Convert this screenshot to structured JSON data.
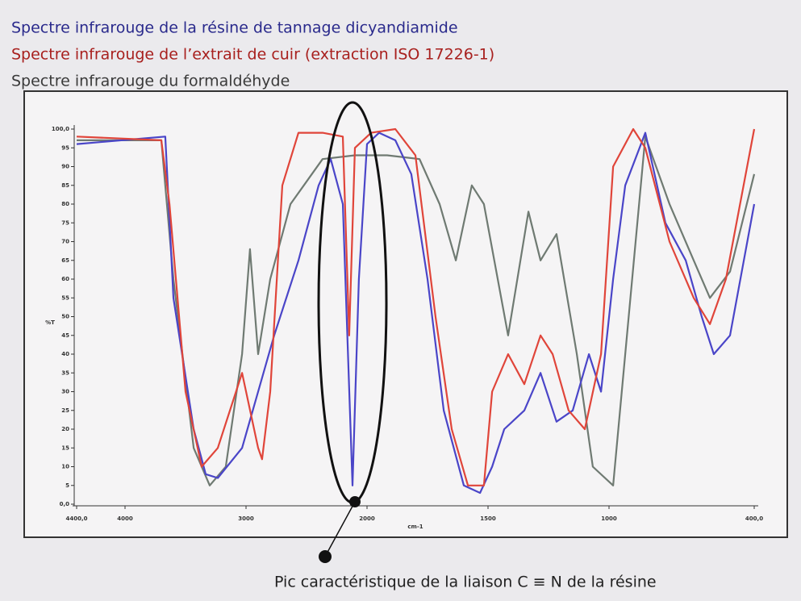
{
  "chart_data": {
    "type": "line",
    "title_lines": [
      {
        "text": "Spectre infrarouge de la résine de tannage dicyandiamide",
        "color": "#2a2a8c"
      },
      {
        "text": "Spectre infrarouge de l’extrait de cuir (extraction ISO 17226-1)",
        "color": "#a8201e"
      },
      {
        "text": "Spectre infrarouge du formaldéhyde",
        "color": "#3a3a3a"
      }
    ],
    "x_label": "cm-1",
    "y_label": "%T",
    "annotation": "Pic caractéristique de la liaison C ≡ N de la résine",
    "xlim": [
      4400,
      400
    ],
    "x_scale_change": 2000,
    "xticks": [
      {
        "value": 4400,
        "label": "4400,0"
      },
      4000,
      3000,
      2000,
      1500,
      1000,
      {
        "value": 400,
        "label": "400,0"
      }
    ],
    "ylim": [
      0,
      100
    ],
    "yticks": [
      {
        "value": 0,
        "label": "0,0"
      },
      5,
      10,
      15,
      20,
      25,
      30,
      35,
      40,
      45,
      50,
      55,
      60,
      65,
      70,
      75,
      80,
      85,
      90,
      95,
      {
        "value": 100,
        "label": "100,0"
      }
    ],
    "series": [
      {
        "color": "#4a45c8",
        "x": [
          4400,
          3667,
          3600,
          3433,
          3333,
          3233,
          3033,
          2900,
          2767,
          2567,
          2400,
          2300,
          2200,
          2120,
          2067,
          2000,
          1950,
          1883,
          1817,
          1750,
          1683,
          1600,
          1533,
          1483,
          1433,
          1350,
          1283,
          1217,
          1150,
          1083,
          1033,
          983,
          933,
          850,
          767,
          683,
          617,
          567,
          500,
          400
        ],
        "values": [
          96,
          98,
          55,
          20,
          8,
          7,
          15,
          30,
          45,
          65,
          85,
          92,
          80,
          5,
          60,
          96,
          99,
          97,
          88,
          60,
          25,
          5,
          3,
          10,
          20,
          25,
          35,
          22,
          25,
          40,
          30,
          60,
          85,
          99,
          75,
          65,
          50,
          40,
          45,
          80
        ]
      },
      {
        "color": "#e0453a",
        "x": [
          4400,
          3700,
          3633,
          3500,
          3367,
          3233,
          3033,
          2900,
          2867,
          2800,
          2700,
          2567,
          2367,
          2200,
          2147,
          2100,
          1983,
          1883,
          1800,
          1717,
          1650,
          1583,
          1517,
          1483,
          1417,
          1350,
          1283,
          1233,
          1167,
          1100,
          1033,
          983,
          900,
          850,
          750,
          650,
          583,
          517,
          400
        ],
        "values": [
          98,
          97,
          80,
          30,
          10,
          15,
          35,
          15,
          12,
          30,
          85,
          99,
          99,
          98,
          45,
          95,
          99,
          100,
          93,
          50,
          20,
          5,
          5,
          30,
          40,
          32,
          45,
          40,
          25,
          20,
          40,
          90,
          100,
          95,
          70,
          55,
          48,
          60,
          100
        ]
      },
      {
        "color": "#6f7a72",
        "x": [
          4400,
          3700,
          3600,
          3433,
          3300,
          3167,
          3033,
          2967,
          2900,
          2800,
          2633,
          2367,
          2100,
          1917,
          1783,
          1700,
          1633,
          1567,
          1517,
          1417,
          1333,
          1283,
          1217,
          1133,
          1067,
          983,
          933,
          850,
          750,
          650,
          583,
          500,
          400
        ],
        "values": [
          97,
          97,
          60,
          15,
          5,
          10,
          40,
          68,
          40,
          60,
          80,
          92,
          93,
          93,
          92,
          80,
          65,
          85,
          80,
          45,
          78,
          65,
          72,
          40,
          10,
          5,
          40,
          98,
          80,
          65,
          55,
          62,
          88
        ]
      }
    ]
  }
}
